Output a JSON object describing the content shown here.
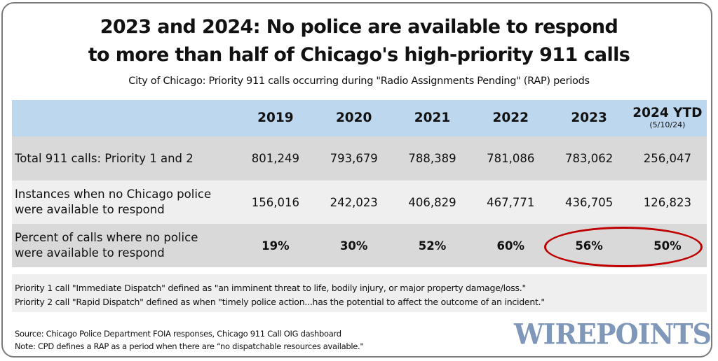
{
  "header": {
    "title_line1": "2023 and 2024: No police are available to respond",
    "title_line2": "to more than half of Chicago's high-priority 911 calls",
    "subtitle": "City of Chicago: Priority 911 calls occurring during \"Radio Assignments Pending\" (RAP) periods"
  },
  "chart_data": {
    "type": "table",
    "title": "2023 and 2024: No police are available to respond to more than half of Chicago's high-priority 911 calls",
    "subtitle": "City of Chicago: Priority 911 calls occurring during \"Radio Assignments Pending\" (RAP) periods",
    "columns": [
      {
        "label": "2019",
        "sublabel": ""
      },
      {
        "label": "2020",
        "sublabel": ""
      },
      {
        "label": "2021",
        "sublabel": ""
      },
      {
        "label": "2022",
        "sublabel": ""
      },
      {
        "label": "2023",
        "sublabel": ""
      },
      {
        "label": "2024 YTD",
        "sublabel": "(5/10/24)"
      }
    ],
    "rows": [
      {
        "label_line1": "Total 911 calls: Priority 1 and 2",
        "label_line2": "",
        "values": [
          "801,249",
          "793,679",
          "788,389",
          "781,086",
          "783,062",
          "256,047"
        ]
      },
      {
        "label_line1": "Instances when no Chicago police",
        "label_line2": "were available to respond",
        "values": [
          "156,016",
          "242,023",
          "406,829",
          "467,771",
          "436,705",
          "126,823"
        ]
      },
      {
        "label_line1": "Percent of calls where no police",
        "label_line2": "were available to respond",
        "values": [
          "19%",
          "30%",
          "52%",
          "60%",
          "56%",
          "50%"
        ]
      }
    ],
    "highlight": {
      "row": 2,
      "columns": [
        "2023",
        "2024 YTD"
      ],
      "color": "#c00000",
      "shape": "ellipse"
    }
  },
  "notes": {
    "line1": "Priority 1 call \"Immediate Dispatch\" defined as \"an imminent threat to life, bodily injury, or major property damage/loss.\"",
    "line2": "Priority 2 call \"Rapid Dispatch\" defined as when \"timely police action...has the potential to affect the outcome of an incident.\""
  },
  "footer": {
    "source": "Source: Chicago Police Department FOIA responses, Chicago 911 Call OIG dashboard",
    "note": "Note: CPD defines a RAP as a period when there are “no dispatchable resources available.\"",
    "logo_text": "WIREPOINTS"
  },
  "colors": {
    "header_bg": "#bdd7ee",
    "row_dark": "#d9d9d9",
    "row_light": "#efefef",
    "highlight": "#c00000",
    "logo": "#7f97b8"
  }
}
